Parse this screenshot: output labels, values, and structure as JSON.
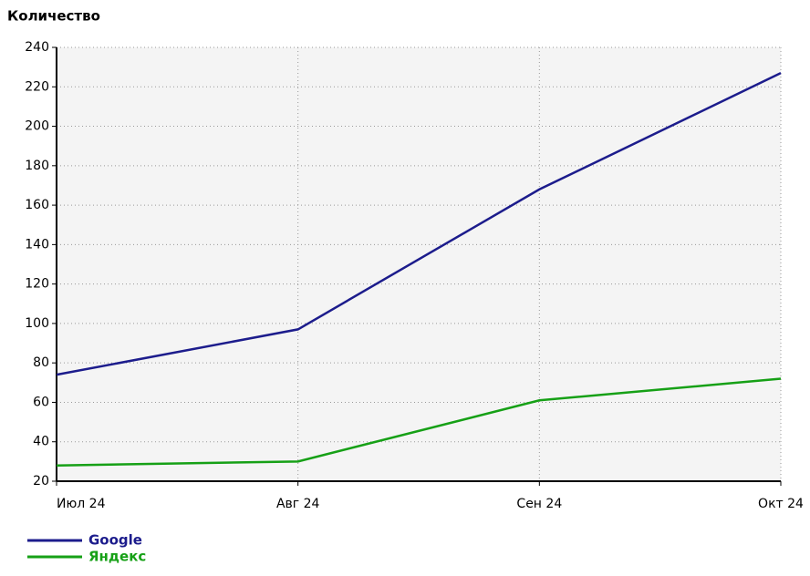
{
  "chart_data": {
    "type": "line",
    "y_label": "Количество",
    "categories": [
      "Июл 24",
      "Авг 24",
      "Сен 24",
      "Окт 24"
    ],
    "series": [
      {
        "name": "Google",
        "color": "#1c1c8c",
        "values": [
          74,
          97,
          168,
          227
        ]
      },
      {
        "name": "Яндекс",
        "color": "#16a016",
        "values": [
          28,
          30,
          61,
          72
        ]
      }
    ],
    "ylim": [
      20,
      240
    ],
    "yticks": [
      20,
      40,
      60,
      80,
      100,
      120,
      140,
      160,
      180,
      200,
      220,
      240
    ],
    "grid": true
  }
}
